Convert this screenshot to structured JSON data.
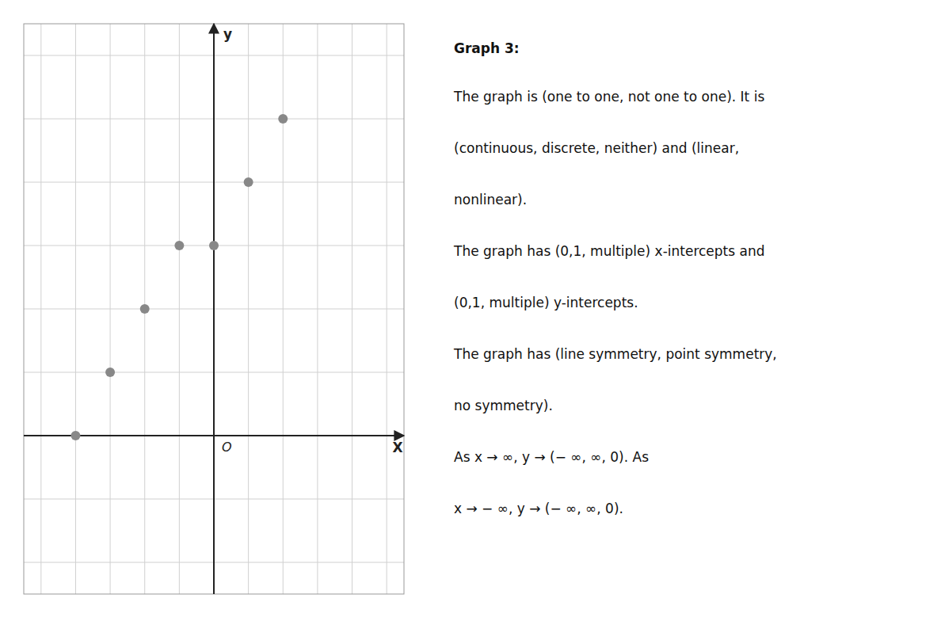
{
  "chart_data": {
    "type": "scatter",
    "title": "Graph 3:",
    "x_label": "X",
    "y_label": "y",
    "annotations": [
      "O"
    ],
    "text_lines": [
      "The graph is (one to one, not one to one). It is",
      "(continuous, discrete, neither) and (linear,",
      "nonlinear).",
      "The graph has (0,1, multiple) x-intercepts and",
      "(0,1, multiple) y-intercepts.",
      "The graph has (line symmetry, point symmetry,",
      "no symmetry).",
      "As x → ∞, y → (− ∞, ∞, 0). As",
      "x → − ∞, y → (− ∞, ∞, 0)."
    ],
    "x": [
      -4,
      -3,
      -2,
      -1,
      0,
      1,
      2
    ],
    "values": [
      0,
      1,
      2,
      3,
      3,
      4,
      5
    ],
    "color": "#888888",
    "xlim": [
      -5.5,
      5.5
    ],
    "ylim": [
      -2.5,
      6.5
    ],
    "xticks": [
      -5,
      -4,
      -3,
      -2,
      -1,
      0,
      1,
      2,
      3,
      4,
      5
    ],
    "yticks": [
      -2,
      -1,
      0,
      1,
      2,
      3,
      4,
      5,
      6
    ],
    "grid": true,
    "tick_labels": false
  }
}
